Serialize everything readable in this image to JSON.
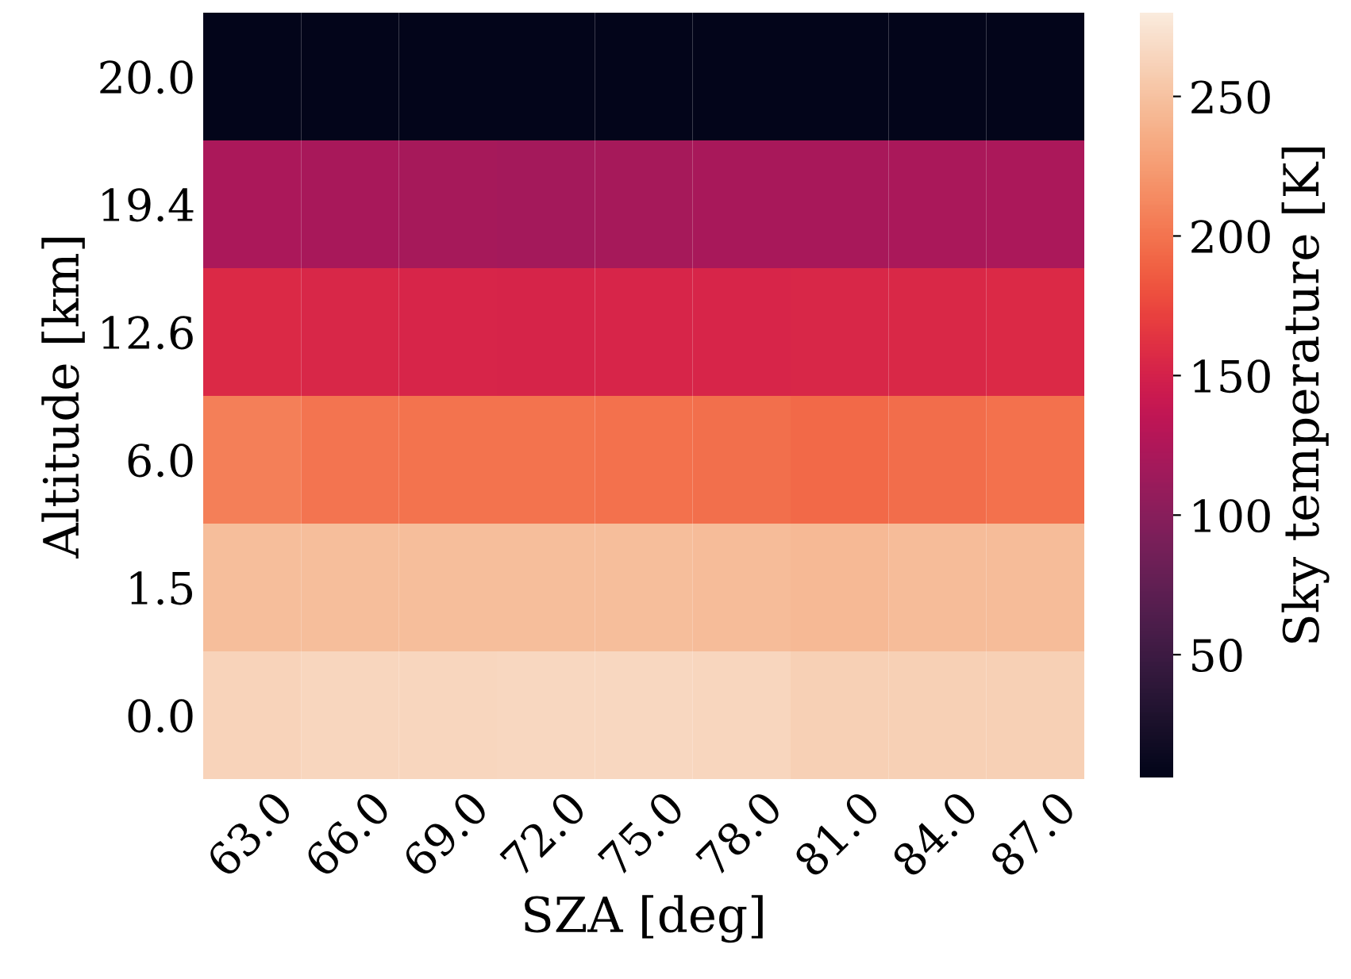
{
  "chart_data": {
    "type": "heatmap",
    "xlabel": "SZA [deg]",
    "ylabel": "Altitude [km]",
    "clabel": "Sky temperature [K]",
    "categories": [
      "63.0",
      "66.0",
      "69.0",
      "72.0",
      "75.0",
      "78.0",
      "81.0",
      "84.0",
      "87.0"
    ],
    "y_categories": [
      "20.0",
      "19.4",
      "12.6",
      "6.0",
      "1.5",
      "0.0"
    ],
    "cells": [
      [
        6,
        6,
        6,
        6,
        6,
        6,
        6,
        6,
        6
      ],
      [
        122,
        120,
        119,
        118,
        119,
        120,
        120,
        121,
        122
      ],
      [
        156,
        154,
        153,
        152,
        153,
        153,
        154,
        155,
        156
      ],
      [
        207,
        200,
        199,
        199,
        198,
        197,
        194,
        196,
        198
      ],
      [
        247,
        247,
        247,
        247,
        247,
        246,
        244,
        246,
        246
      ],
      [
        262,
        264,
        265,
        266,
        266,
        264,
        260,
        260,
        260
      ]
    ],
    "clim": [
      6,
      280
    ],
    "cticks": [
      50,
      100,
      150,
      200,
      250
    ]
  }
}
